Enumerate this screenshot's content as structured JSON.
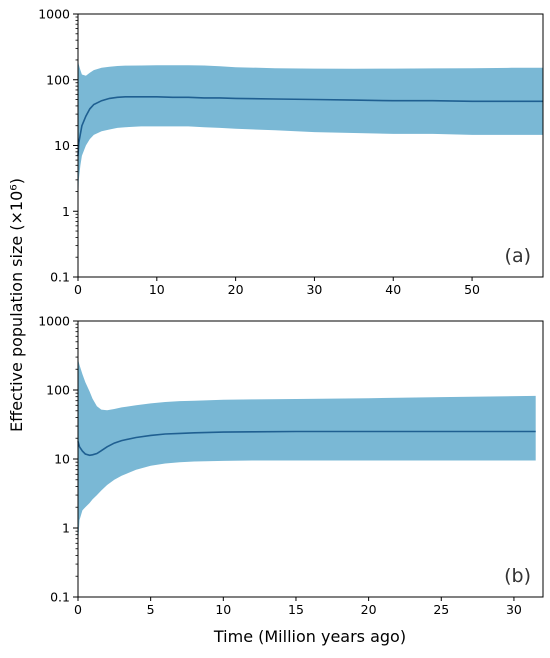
{
  "figure": {
    "ylabel": "Effective population size (×10⁶)",
    "xlabel": "Time (Million years ago)"
  },
  "colors": {
    "band": "#7ab8d5",
    "median_line": "#1f5f91",
    "axes": "#000000"
  },
  "chart_data": [
    {
      "type": "area",
      "panel_label": "(a)",
      "title": "",
      "xlabel": "Time (Million years ago)",
      "ylabel": "Effective population size (×10⁶)",
      "yscale": "log",
      "xlim": [
        0,
        59
      ],
      "ylim": [
        0.1,
        1000
      ],
      "x_ticks": [
        0,
        10,
        20,
        30,
        40,
        50
      ],
      "x_tick_labels": [
        "0",
        "10",
        "20",
        "30",
        "40",
        "50"
      ],
      "y_ticks": [
        0.1,
        1,
        10,
        100,
        1000
      ],
      "y_tick_labels": [
        "0.1",
        "1",
        "10",
        "100",
        "1000"
      ],
      "grid": false,
      "x": [
        0,
        0.1,
        0.3,
        0.5,
        1,
        1.5,
        2,
        3,
        4,
        5,
        6,
        8,
        10,
        12,
        14,
        16,
        18,
        20,
        25,
        30,
        35,
        40,
        45,
        50,
        55,
        59
      ],
      "series": [
        {
          "role": "median",
          "values": [
            7,
            11,
            15,
            20,
            28,
            36,
            42,
            48,
            52,
            54,
            55,
            55,
            55,
            54,
            54,
            53,
            53,
            52,
            51,
            50,
            49,
            48,
            48,
            47,
            47,
            47
          ]
        },
        {
          "role": "lower",
          "values": [
            1.1,
            3,
            5,
            7,
            10,
            12.5,
            14.5,
            16.5,
            17.5,
            18.5,
            19,
            19.5,
            19.5,
            19.5,
            19.5,
            19,
            18.5,
            18,
            17,
            16,
            15.5,
            15,
            15,
            14.5,
            14.5,
            14.5
          ]
        },
        {
          "role": "upper",
          "values": [
            200,
            170,
            140,
            120,
            115,
            128,
            140,
            152,
            158,
            162,
            164,
            165,
            166,
            166,
            166,
            165,
            160,
            155,
            150,
            148,
            147,
            148,
            149,
            150,
            152,
            152
          ]
        }
      ]
    },
    {
      "type": "area",
      "panel_label": "(b)",
      "title": "",
      "xlabel": "Time (Million years ago)",
      "ylabel": "Effective population size (×10⁶)",
      "yscale": "log",
      "xlim": [
        0,
        32
      ],
      "ylim": [
        0.1,
        1000
      ],
      "x_ticks": [
        0,
        5,
        10,
        15,
        20,
        25,
        30
      ],
      "x_tick_labels": [
        "0",
        "5",
        "10",
        "15",
        "20",
        "25",
        "30"
      ],
      "y_ticks": [
        0.1,
        1,
        10,
        100,
        1000
      ],
      "y_tick_labels": [
        "0.1",
        "1",
        "10",
        "100",
        "1000"
      ],
      "grid": false,
      "x": [
        0,
        0.1,
        0.3,
        0.5,
        0.8,
        1,
        1.3,
        1.6,
        2,
        2.5,
        3,
        4,
        5,
        6,
        7,
        8,
        10,
        12,
        15,
        20,
        25,
        31.5
      ],
      "series": [
        {
          "role": "median",
          "values": [
            18,
            15,
            13,
            11.8,
            11.3,
            11.5,
            12,
            13.2,
            15,
            17,
            18.5,
            20.5,
            22,
            23,
            23.5,
            24,
            24.5,
            24.8,
            25,
            25,
            25,
            25
          ]
        },
        {
          "role": "lower",
          "values": [
            0.55,
            1.3,
            1.8,
            2,
            2.3,
            2.6,
            3,
            3.5,
            4.2,
            5,
            5.7,
            7,
            8,
            8.6,
            9,
            9.2,
            9.4,
            9.5,
            9.5,
            9.5,
            9.5,
            9.5
          ]
        },
        {
          "role": "upper",
          "values": [
            280,
            230,
            170,
            130,
            95,
            75,
            58,
            52,
            51,
            53,
            56,
            60,
            64,
            67,
            69,
            70,
            72,
            73,
            74,
            76,
            79,
            82
          ]
        }
      ]
    }
  ]
}
